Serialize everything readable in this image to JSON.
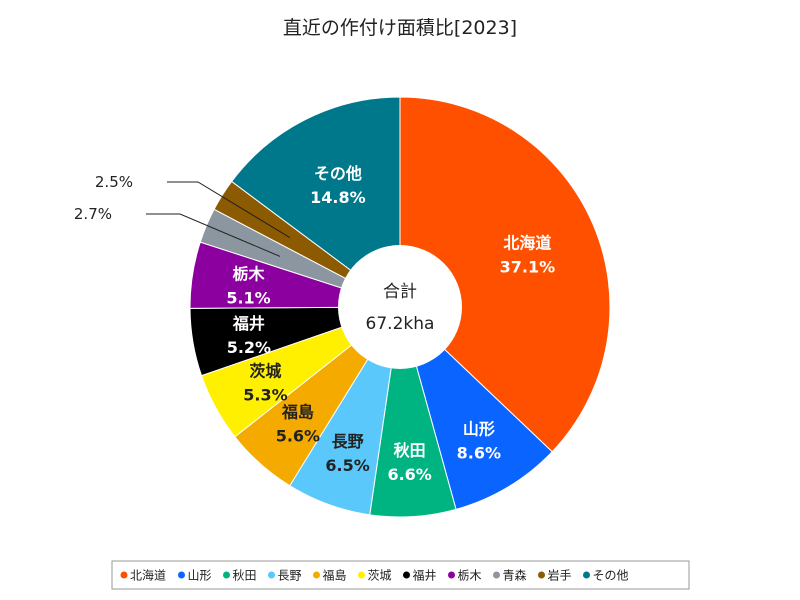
{
  "chart_data": {
    "type": "pie",
    "title": "直近の作付け面積比[2023]",
    "center_label": "合計",
    "center_value": "67.2kha",
    "legend_position": "bottom",
    "slices": [
      {
        "name": "北海道",
        "value": 37.1,
        "label": "37.1%",
        "color": "#ff5000",
        "text_color": "#ffffff"
      },
      {
        "name": "山形",
        "value": 8.6,
        "label": "8.6%",
        "color": "#0a64ff",
        "text_color": "#ffffff"
      },
      {
        "name": "秋田",
        "value": 6.6,
        "label": "6.6%",
        "color": "#00b482",
        "text_color": "#ffffff"
      },
      {
        "name": "長野",
        "value": 6.5,
        "label": "6.5%",
        "color": "#5ac8fa",
        "text_color": "#222222"
      },
      {
        "name": "福島",
        "value": 5.6,
        "label": "5.6%",
        "color": "#f5aa00",
        "text_color": "#222222"
      },
      {
        "name": "茨城",
        "value": 5.3,
        "label": "5.3%",
        "color": "#fff000",
        "text_color": "#222222"
      },
      {
        "name": "福井",
        "value": 5.2,
        "label": "5.2%",
        "color": "#000000",
        "text_color": "#ffffff"
      },
      {
        "name": "栃木",
        "value": 5.1,
        "label": "5.1%",
        "color": "#8c00a0",
        "text_color": "#ffffff"
      },
      {
        "name": "青森",
        "value": 2.7,
        "label": "2.7%",
        "color": "#8c96a0",
        "text_color": "#222222"
      },
      {
        "name": "岩手",
        "value": 2.5,
        "label": "2.5%",
        "color": "#8c5a00",
        "text_color": "#222222"
      },
      {
        "name": "その他",
        "value": 14.8,
        "label": "14.8%",
        "color": "#00788c",
        "text_color": "#ffffff"
      }
    ]
  }
}
